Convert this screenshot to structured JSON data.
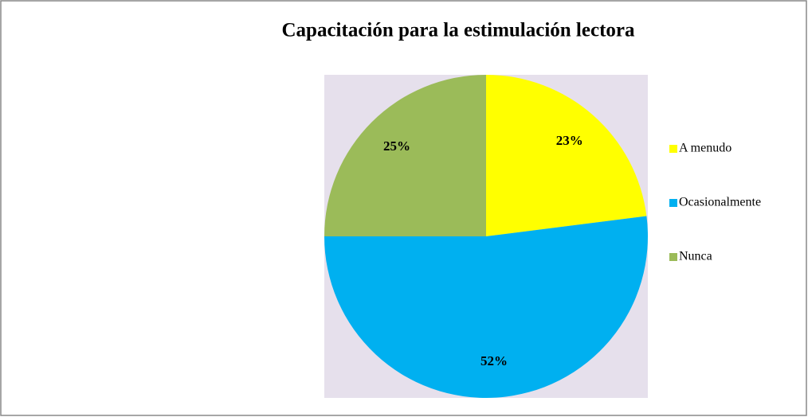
{
  "chart_data": {
    "type": "pie",
    "title": "Capacitación para la estimulación lectora",
    "categories": [
      "A menudo",
      "Ocasionalmente",
      "Nunca"
    ],
    "values": [
      23,
      52,
      25
    ],
    "value_labels": [
      "23%",
      "52%",
      "25%"
    ],
    "colors": [
      "#ffff00",
      "#00b0f0",
      "#9bbb59"
    ],
    "legend": "right"
  }
}
